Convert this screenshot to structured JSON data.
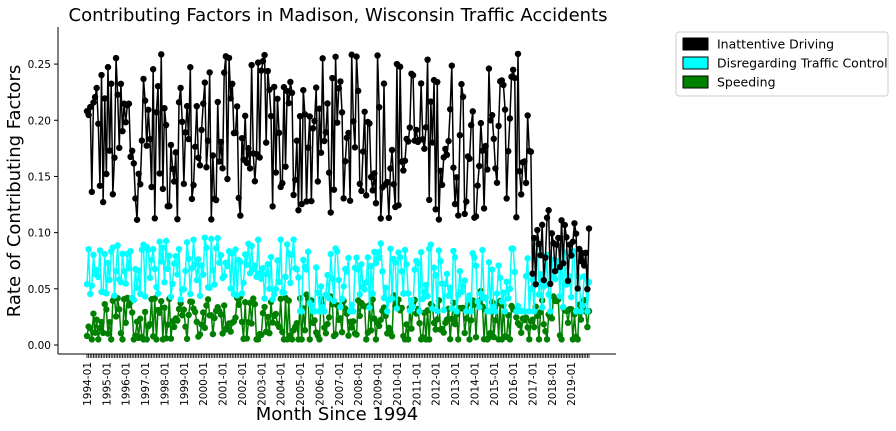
{
  "chart_data": {
    "type": "line",
    "title": "Contributing Factors in Madison, Wisconsin Traffic Accidents",
    "xlabel": "Month Since 1994",
    "ylabel": "Rate of Contributing Factors",
    "x_tick_labels": [
      "1994-01",
      "1995-01",
      "1996-01",
      "1997-01",
      "1998-01",
      "1999-01",
      "2000-01",
      "2001-01",
      "2002-01",
      "2003-01",
      "2004-01",
      "2005-01",
      "2006-01",
      "2007-01",
      "2008-01",
      "2009-01",
      "2010-01",
      "2011-01",
      "2012-01",
      "2013-01",
      "2014-01",
      "2015-01",
      "2016-01",
      "2017-01",
      "2018-01",
      "2019-01"
    ],
    "y_ticks": [
      0.0,
      0.05,
      0.1,
      0.15,
      0.2,
      0.25
    ],
    "y_tick_labels": [
      "0.00",
      "0.05",
      "0.10",
      "0.15",
      "0.20",
      "0.25"
    ],
    "ylim": [
      -0.008,
      0.283
    ],
    "n_months": 312,
    "legend_position": "upper-right-outside",
    "grid": false,
    "series": [
      {
        "name": "Inattentive Driving",
        "color": "#000000",
        "regime1": {
          "from": "1994-01",
          "to": "2016-12",
          "mean": 0.185,
          "range": [
            0.085,
            0.26
          ]
        },
        "regime2": {
          "from": "2017-01",
          "to": "2019-12",
          "mean": 0.08,
          "range": [
            0.04,
            0.12
          ]
        }
      },
      {
        "name": "Disregarding Traffic Control",
        "color": "#00ffff",
        "regime1": {
          "from": "1994-01",
          "to": "2004-12",
          "mean": 0.068,
          "range": [
            0.04,
            0.105
          ]
        },
        "regime2": {
          "from": "2005-01",
          "to": "2019-12",
          "mean": 0.055,
          "range": [
            0.03,
            0.105
          ]
        }
      },
      {
        "name": "Speeding",
        "color": "#008000",
        "regime1": {
          "from": "1994-01",
          "to": "2019-12",
          "mean": 0.022,
          "range": [
            0.005,
            0.055
          ]
        }
      }
    ]
  }
}
